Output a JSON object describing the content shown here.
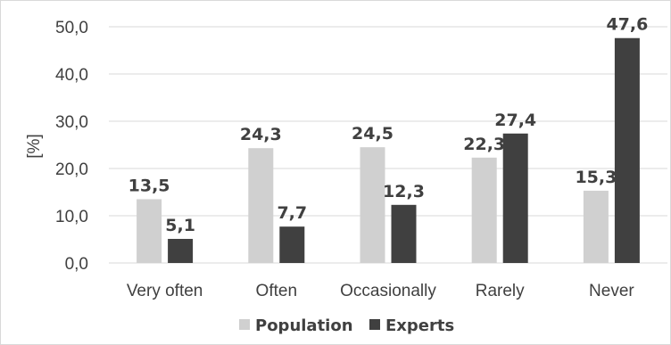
{
  "chart_data": {
    "type": "bar",
    "ylabel": "[%]",
    "ylim": [
      0,
      50
    ],
    "yticks": [
      "0,0",
      "10,0",
      "20,0",
      "30,0",
      "40,0",
      "50,0"
    ],
    "ytick_values": [
      0,
      10,
      20,
      30,
      40,
      50
    ],
    "grid": true,
    "legend_position": "bottom",
    "categories": [
      "Very often",
      "Often",
      "Occasionally",
      "Rarely",
      "Never"
    ],
    "series": [
      {
        "name": "Population",
        "color": "#d0d0d0",
        "values": [
          13.5,
          24.3,
          24.5,
          22.3,
          15.3
        ],
        "labels": [
          "13,5",
          "24,3",
          "24,5",
          "22,3",
          "15,3"
        ]
      },
      {
        "name": "Experts",
        "color": "#404040",
        "values": [
          5.1,
          7.7,
          12.3,
          27.4,
          47.6
        ],
        "labels": [
          "5,1",
          "7,7",
          "12,3",
          "27,4",
          "47,6"
        ]
      }
    ]
  }
}
